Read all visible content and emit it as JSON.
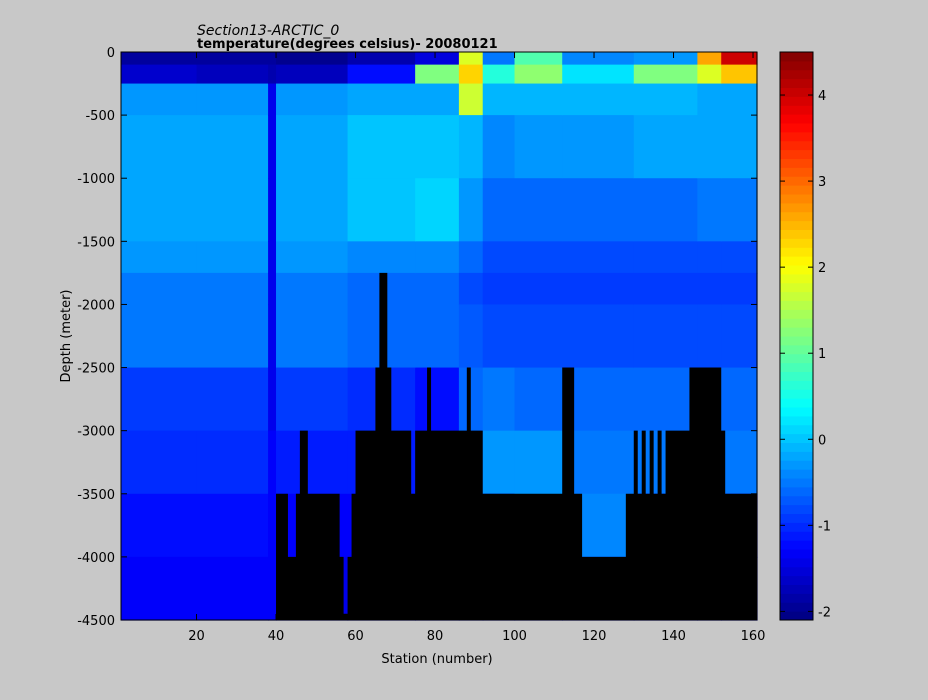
{
  "chart_data": {
    "type": "heatmap",
    "title": "Section13-ARCTIC_0",
    "subtitle": "temperature(degrees  celsius)- 20080121",
    "xlabel": "Station (number)",
    "ylabel": "Depth (meter)",
    "xlim": [
      1,
      161
    ],
    "ylim": [
      -4500,
      0
    ],
    "x_ticks": [
      20,
      40,
      60,
      80,
      100,
      120,
      140,
      160
    ],
    "x_tick_labels": [
      "20",
      "40",
      "60",
      "80",
      "100",
      "120",
      "140",
      "160"
    ],
    "y_ticks": [
      0,
      -500,
      -1000,
      -1500,
      -2000,
      -2500,
      -3000,
      -3500,
      -4000,
      -4500
    ],
    "y_tick_labels": [
      "0",
      "-500",
      "-1000",
      "-1500",
      "-2000",
      "-2500",
      "-3000",
      "-3500",
      "-4000",
      "-4500"
    ],
    "colorbar": {
      "range": [
        -2.1,
        4.5
      ],
      "ticks": [
        -2,
        -1,
        0,
        1,
        2,
        3,
        4
      ],
      "tick_labels": [
        "-2",
        "-1",
        "0",
        "1",
        "2",
        "3",
        "4"
      ],
      "colormap": "jet",
      "levels": 64
    },
    "depth_layers": [
      {
        "top": 0,
        "bottom": -100
      },
      {
        "top": -100,
        "bottom": -250
      },
      {
        "top": -250,
        "bottom": -500
      },
      {
        "top": -500,
        "bottom": -1000
      },
      {
        "top": -1000,
        "bottom": -1500
      },
      {
        "top": -1500,
        "bottom": -1750
      },
      {
        "top": -1750,
        "bottom": -2000
      },
      {
        "top": -2000,
        "bottom": -2500
      },
      {
        "top": -2500,
        "bottom": -3000
      },
      {
        "top": -3000,
        "bottom": -3500
      },
      {
        "top": -3500,
        "bottom": -4000
      },
      {
        "top": -4000,
        "bottom": -4500
      }
    ],
    "temperature_profiles": [
      {
        "from_station": 1,
        "to_station": 20,
        "values": [
          -1.9,
          -1.6,
          -0.3,
          -0.2,
          -0.2,
          -0.3,
          -0.5,
          -0.5,
          -0.9,
          -1.0,
          -1.2,
          -1.3
        ]
      },
      {
        "from_station": 20,
        "to_station": 38,
        "values": [
          -1.9,
          -1.7,
          -0.3,
          -0.2,
          -0.2,
          -0.3,
          -0.5,
          -0.5,
          -0.9,
          -1.0,
          -1.2,
          -1.3
        ]
      },
      {
        "from_station": 38,
        "to_station": 40,
        "values": [
          -1.9,
          -1.8,
          -1.4,
          -1.4,
          -1.4,
          -1.4,
          -1.4,
          -1.4,
          -1.4,
          -1.3,
          -1.3,
          -1.3
        ]
      },
      {
        "from_station": 40,
        "to_station": 58,
        "values": [
          -2.0,
          -1.7,
          -0.3,
          -0.2,
          -0.2,
          -0.3,
          -0.5,
          -0.5,
          -0.9,
          -1.1,
          -1.3,
          -1.4
        ]
      },
      {
        "from_station": 58,
        "to_station": 75,
        "values": [
          -1.8,
          -1.2,
          -0.2,
          0.0,
          0.0,
          -0.4,
          -0.6,
          -0.6,
          -1.0,
          -1.1,
          -1.3,
          -1.4
        ]
      },
      {
        "from_station": 75,
        "to_station": 86,
        "values": [
          -1.5,
          1.2,
          -0.2,
          0.0,
          0.1,
          -0.4,
          -0.6,
          -0.6,
          -1.2,
          -1.0,
          -1.3,
          -1.4
        ]
      },
      {
        "from_station": 86,
        "to_station": 92,
        "values": [
          1.8,
          2.3,
          1.7,
          -0.1,
          -0.3,
          -0.6,
          -0.8,
          -0.7,
          -0.6,
          -0.7,
          -1.3,
          -1.4
        ]
      },
      {
        "from_station": 92,
        "to_station": 100,
        "values": [
          -0.5,
          0.6,
          -0.1,
          -0.4,
          -0.6,
          -0.8,
          -0.9,
          -0.8,
          -0.5,
          -0.3,
          -1.3,
          -1.4
        ]
      },
      {
        "from_station": 100,
        "to_station": 112,
        "values": [
          0.9,
          1.3,
          -0.1,
          -0.3,
          -0.6,
          -0.8,
          -0.9,
          -0.8,
          -0.6,
          -0.3,
          -0.3,
          -1.4
        ]
      },
      {
        "from_station": 112,
        "to_station": 130,
        "values": [
          -0.4,
          0.2,
          -0.1,
          -0.3,
          -0.6,
          -0.8,
          -0.9,
          -0.8,
          -0.6,
          -0.5,
          -0.4,
          -1.4
        ]
      },
      {
        "from_station": 130,
        "to_station": 146,
        "values": [
          -0.3,
          1.2,
          -0.1,
          -0.2,
          -0.6,
          -0.8,
          -0.9,
          -0.8,
          -0.6,
          -0.5,
          -1.3,
          -1.4
        ]
      },
      {
        "from_station": 146,
        "to_station": 152,
        "values": [
          2.6,
          1.8,
          -0.2,
          -0.2,
          -0.5,
          -0.8,
          -0.9,
          -0.8,
          -0.6,
          -0.5,
          -1.3,
          -1.4
        ]
      },
      {
        "from_station": 152,
        "to_station": 161,
        "values": [
          4.0,
          2.4,
          -0.2,
          -0.2,
          -0.5,
          -0.8,
          -0.9,
          -0.8,
          -0.6,
          -0.5,
          -1.3,
          -1.4
        ]
      }
    ],
    "seafloor": {
      "station_edges": [
        40,
        43,
        45,
        46,
        48,
        56,
        57,
        58,
        59,
        60,
        65,
        66,
        68,
        69,
        74,
        75,
        78,
        79,
        88,
        89,
        92,
        93,
        108,
        112,
        115,
        117,
        118,
        128,
        130,
        131,
        132,
        133,
        134,
        135,
        136,
        137,
        138,
        144,
        152,
        153,
        155,
        161
      ],
      "bottom_depth": [
        -3500,
        -4000,
        -3500,
        -3000,
        -3500,
        -4000,
        -4450,
        -4000,
        -3500,
        -3000,
        -2500,
        -1750,
        -2500,
        -3000,
        -3500,
        -3000,
        -2500,
        -3000,
        -2500,
        -3000,
        -3500,
        -3500,
        -3500,
        -2500,
        -3500,
        -4000,
        -4000,
        -3500,
        -3000,
        -3500,
        -3000,
        -3500,
        -3000,
        -3500,
        -3000,
        -3500,
        -3000,
        -2500,
        -3000,
        -3500,
        -3500
      ]
    }
  }
}
